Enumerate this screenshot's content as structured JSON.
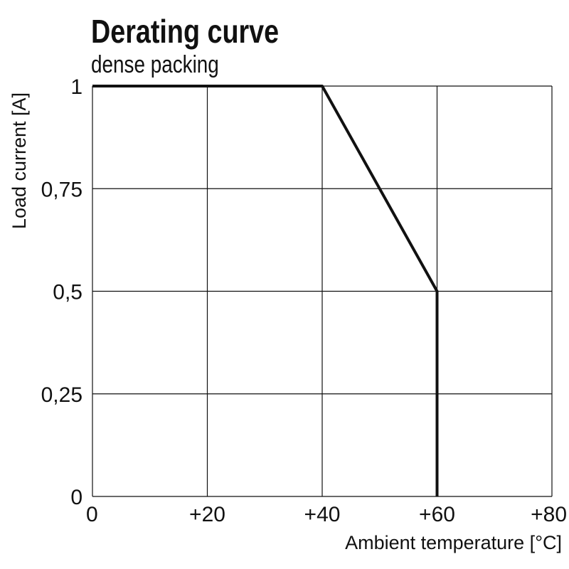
{
  "chart_data": {
    "type": "line",
    "title": "Derating curve",
    "subtitle": "dense packing",
    "xlabel": "Ambient temperature [°C]",
    "ylabel": "Load current [A]",
    "xlim": [
      0,
      80
    ],
    "ylim": [
      0,
      1
    ],
    "grid": true,
    "x_ticks": [
      {
        "value": 0,
        "label": "0"
      },
      {
        "value": 20,
        "label": "+20"
      },
      {
        "value": 40,
        "label": "+40"
      },
      {
        "value": 60,
        "label": "+60"
      },
      {
        "value": 80,
        "label": "+80"
      }
    ],
    "y_ticks": [
      {
        "value": 0,
        "label": "0"
      },
      {
        "value": 0.25,
        "label": "0,25"
      },
      {
        "value": 0.5,
        "label": "0,5"
      },
      {
        "value": 0.75,
        "label": "0,75"
      },
      {
        "value": 1,
        "label": "1"
      }
    ],
    "series": [
      {
        "name": "Derating curve",
        "x": [
          0,
          40,
          60,
          60
        ],
        "y": [
          1,
          1,
          0.5,
          0
        ]
      }
    ]
  },
  "colors": {
    "grid": "#111111",
    "curve": "#111111",
    "text": "#111111"
  }
}
